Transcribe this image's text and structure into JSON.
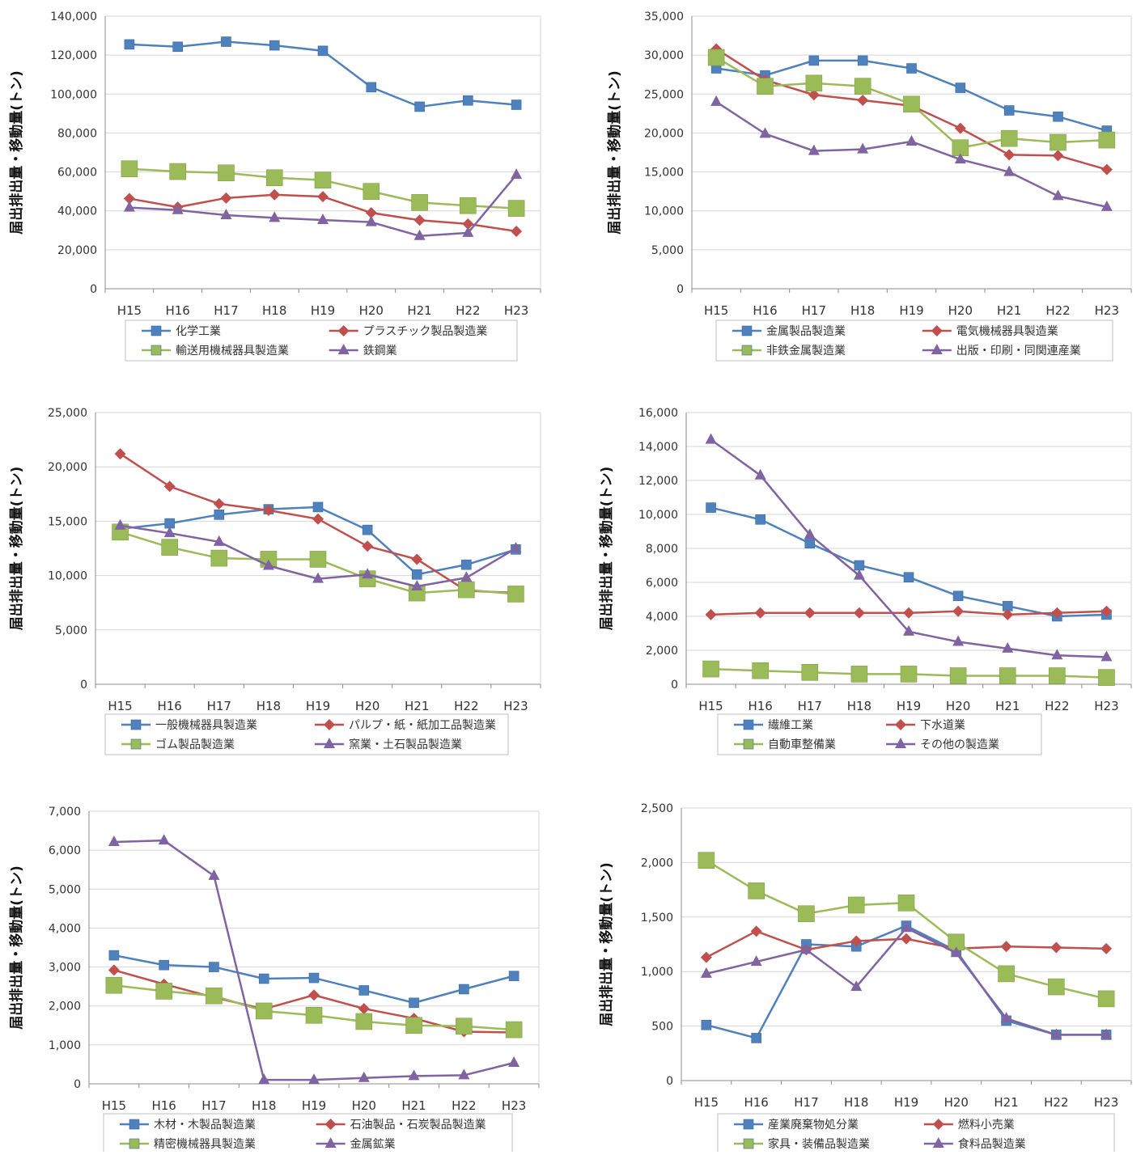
{
  "chart_data": [
    {
      "type": "line",
      "ylabel": "届出排出量・移動量(トン)",
      "x": [
        "H15",
        "H16",
        "H17",
        "H18",
        "H19",
        "H20",
        "H21",
        "H22",
        "H23"
      ],
      "ylim": [
        0,
        140000
      ],
      "yticks": [
        0,
        20000,
        40000,
        60000,
        80000,
        100000,
        120000,
        140000
      ],
      "ytick_labels": [
        "0",
        "20,000",
        "40,000",
        "60,000",
        "80,000",
        "100,000",
        "120,000",
        "140,000"
      ],
      "grid": true,
      "legend_position": "bottom",
      "series": [
        {
          "name": "化学工業",
          "color": "#4f81bd",
          "marker": "square",
          "values": [
            125500,
            124300,
            126900,
            125000,
            122200,
            103500,
            93500,
            96700,
            94500
          ]
        },
        {
          "name": "プラスチック製品製造業",
          "color": "#c0504d",
          "marker": "diamond",
          "values": [
            46300,
            41900,
            46600,
            48300,
            47300,
            39000,
            35200,
            33300,
            29500
          ]
        },
        {
          "name": "輸送用機械器具製造業",
          "color": "#9bbb59",
          "marker": "square-large",
          "values": [
            61600,
            60200,
            59500,
            57000,
            55800,
            50000,
            44300,
            42700,
            41300
          ]
        },
        {
          "name": "鉄鋼業",
          "color": "#8064a2",
          "marker": "triangle",
          "values": [
            41700,
            40400,
            37800,
            36400,
            35300,
            34200,
            27100,
            28700,
            58500
          ]
        }
      ]
    },
    {
      "type": "line",
      "ylabel": "届出排出量・移動量(トン)",
      "x": [
        "H15",
        "H16",
        "H17",
        "H18",
        "H19",
        "H20",
        "H21",
        "H22",
        "H23"
      ],
      "ylim": [
        0,
        35000
      ],
      "yticks": [
        0,
        5000,
        10000,
        15000,
        20000,
        25000,
        30000,
        35000
      ],
      "ytick_labels": [
        "0",
        "5,000",
        "10,000",
        "15,000",
        "20,000",
        "25,000",
        "30,000",
        "35,000"
      ],
      "grid": true,
      "legend_position": "bottom",
      "series": [
        {
          "name": "金属製品製造業",
          "color": "#4f81bd",
          "marker": "square",
          "values": [
            28300,
            27400,
            29300,
            29300,
            28300,
            25800,
            22900,
            22100,
            20300
          ]
        },
        {
          "name": "電気機械器具製造業",
          "color": "#c0504d",
          "marker": "diamond",
          "values": [
            30800,
            26800,
            24900,
            24200,
            23500,
            20600,
            17200,
            17100,
            15300
          ]
        },
        {
          "name": "非鉄金属製造業",
          "color": "#9bbb59",
          "marker": "square-large",
          "values": [
            29700,
            26000,
            26400,
            26000,
            23700,
            18100,
            19300,
            18800,
            19100
          ]
        },
        {
          "name": "出版・印刷・同関連産業",
          "color": "#8064a2",
          "marker": "triangle",
          "values": [
            24000,
            19900,
            17700,
            17900,
            18900,
            16600,
            15000,
            11900,
            10500
          ]
        }
      ]
    },
    {
      "type": "line",
      "ylabel": "届出排出量・移動量(トン)",
      "x": [
        "H15",
        "H16",
        "H17",
        "H18",
        "H19",
        "H20",
        "H21",
        "H22",
        "H23"
      ],
      "ylim": [
        0,
        25000
      ],
      "yticks": [
        0,
        5000,
        10000,
        15000,
        20000,
        25000
      ],
      "ytick_labels": [
        "0",
        "5,000",
        "10,000",
        "15,000",
        "20,000",
        "25,000"
      ],
      "grid": true,
      "legend_position": "bottom",
      "series": [
        {
          "name": "一般機械器具製造業",
          "color": "#4f81bd",
          "marker": "square",
          "values": [
            14300,
            14800,
            15600,
            16100,
            16300,
            14200,
            10100,
            11000,
            12400
          ]
        },
        {
          "name": "パルプ・紙・紙加工品製造業",
          "color": "#c0504d",
          "marker": "diamond",
          "values": [
            21200,
            18200,
            16600,
            16000,
            15200,
            12700,
            11500,
            8600,
            8400
          ]
        },
        {
          "name": "ゴム製品製造業",
          "color": "#9bbb59",
          "marker": "square-large",
          "values": [
            14000,
            12600,
            11600,
            11500,
            11500,
            9700,
            8400,
            8700,
            8300
          ]
        },
        {
          "name": "窯業・土石製品製造業",
          "color": "#8064a2",
          "marker": "triangle",
          "values": [
            14600,
            13900,
            13100,
            10900,
            9700,
            10100,
            9000,
            9800,
            12500
          ]
        }
      ]
    },
    {
      "type": "line",
      "ylabel": "届出排出量・移動量(トン)",
      "x": [
        "H15",
        "H16",
        "H17",
        "H18",
        "H19",
        "H20",
        "H21",
        "H22",
        "H23"
      ],
      "ylim": [
        0,
        16000
      ],
      "yticks": [
        0,
        2000,
        4000,
        6000,
        8000,
        10000,
        12000,
        14000,
        16000
      ],
      "ytick_labels": [
        "0",
        "2,000",
        "4,000",
        "6,000",
        "8,000",
        "10,000",
        "12,000",
        "14,000",
        "16,000"
      ],
      "grid": true,
      "legend_position": "bottom",
      "series": [
        {
          "name": "繊維工業",
          "color": "#4f81bd",
          "marker": "square",
          "values": [
            10400,
            9700,
            8300,
            7000,
            6300,
            5200,
            4600,
            4000,
            4100
          ]
        },
        {
          "name": "下水道業",
          "color": "#c0504d",
          "marker": "diamond",
          "values": [
            4100,
            4200,
            4200,
            4200,
            4200,
            4300,
            4100,
            4200,
            4300
          ]
        },
        {
          "name": "自動車整備業",
          "color": "#9bbb59",
          "marker": "square-large",
          "values": [
            900,
            800,
            700,
            600,
            600,
            500,
            500,
            500,
            400
          ]
        },
        {
          "name": "その他の製造業",
          "color": "#8064a2",
          "marker": "triangle",
          "values": [
            14400,
            12300,
            8800,
            6400,
            3100,
            2500,
            2100,
            1700,
            1600
          ]
        }
      ]
    },
    {
      "type": "line",
      "ylabel": "届出排出量・移動量(トン)",
      "x": [
        "H15",
        "H16",
        "H17",
        "H18",
        "H19",
        "H20",
        "H21",
        "H22",
        "H23"
      ],
      "ylim": [
        0,
        7000
      ],
      "yticks": [
        0,
        1000,
        2000,
        3000,
        4000,
        5000,
        6000,
        7000
      ],
      "ytick_labels": [
        "0",
        "1,000",
        "2,000",
        "3,000",
        "4,000",
        "5,000",
        "6,000",
        "7,000"
      ],
      "grid": true,
      "legend_position": "bottom",
      "series": [
        {
          "name": "木材・木製品製造業",
          "color": "#4f81bd",
          "marker": "square",
          "values": [
            3300,
            3050,
            3000,
            2700,
            2720,
            2400,
            2080,
            2430,
            2770
          ]
        },
        {
          "name": "石油製品・石炭製品製造業",
          "color": "#c0504d",
          "marker": "diamond",
          "values": [
            2920,
            2560,
            2220,
            1920,
            2280,
            1930,
            1680,
            1340,
            1320
          ]
        },
        {
          "name": "精密機械器具製造業",
          "color": "#9bbb59",
          "marker": "square-large",
          "values": [
            2530,
            2380,
            2260,
            1870,
            1760,
            1600,
            1500,
            1480,
            1390
          ]
        },
        {
          "name": "金属鉱業",
          "color": "#8064a2",
          "marker": "triangle",
          "values": [
            6210,
            6250,
            5340,
            100,
            100,
            150,
            200,
            220,
            540
          ]
        }
      ]
    },
    {
      "type": "line",
      "ylabel": "届出排出量・移動量(トン)",
      "x": [
        "H15",
        "H16",
        "H17",
        "H18",
        "H19",
        "H20",
        "H21",
        "H22",
        "H23"
      ],
      "ylim": [
        0,
        2500
      ],
      "yticks": [
        0,
        500,
        1000,
        1500,
        2000,
        2500
      ],
      "ytick_labels": [
        "0",
        "500",
        "1,000",
        "1,500",
        "2,000",
        "2,500"
      ],
      "grid": true,
      "legend_position": "bottom",
      "series": [
        {
          "name": "産業廃棄物処分業",
          "color": "#4f81bd",
          "marker": "square",
          "values": [
            510,
            390,
            1250,
            1230,
            1420,
            1190,
            550,
            420,
            420
          ]
        },
        {
          "name": "燃料小売業",
          "color": "#c0504d",
          "marker": "diamond",
          "values": [
            1130,
            1370,
            1200,
            1280,
            1300,
            1210,
            1230,
            1220,
            1210
          ]
        },
        {
          "name": "家具・装備品製造業",
          "color": "#9bbb59",
          "marker": "square-large",
          "values": [
            2020,
            1740,
            1530,
            1610,
            1630,
            1270,
            980,
            860,
            750
          ]
        },
        {
          "name": "食料品製造業",
          "color": "#8064a2",
          "marker": "triangle",
          "values": [
            980,
            1090,
            1200,
            860,
            1400,
            1170,
            570,
            420,
            420
          ]
        }
      ]
    }
  ]
}
